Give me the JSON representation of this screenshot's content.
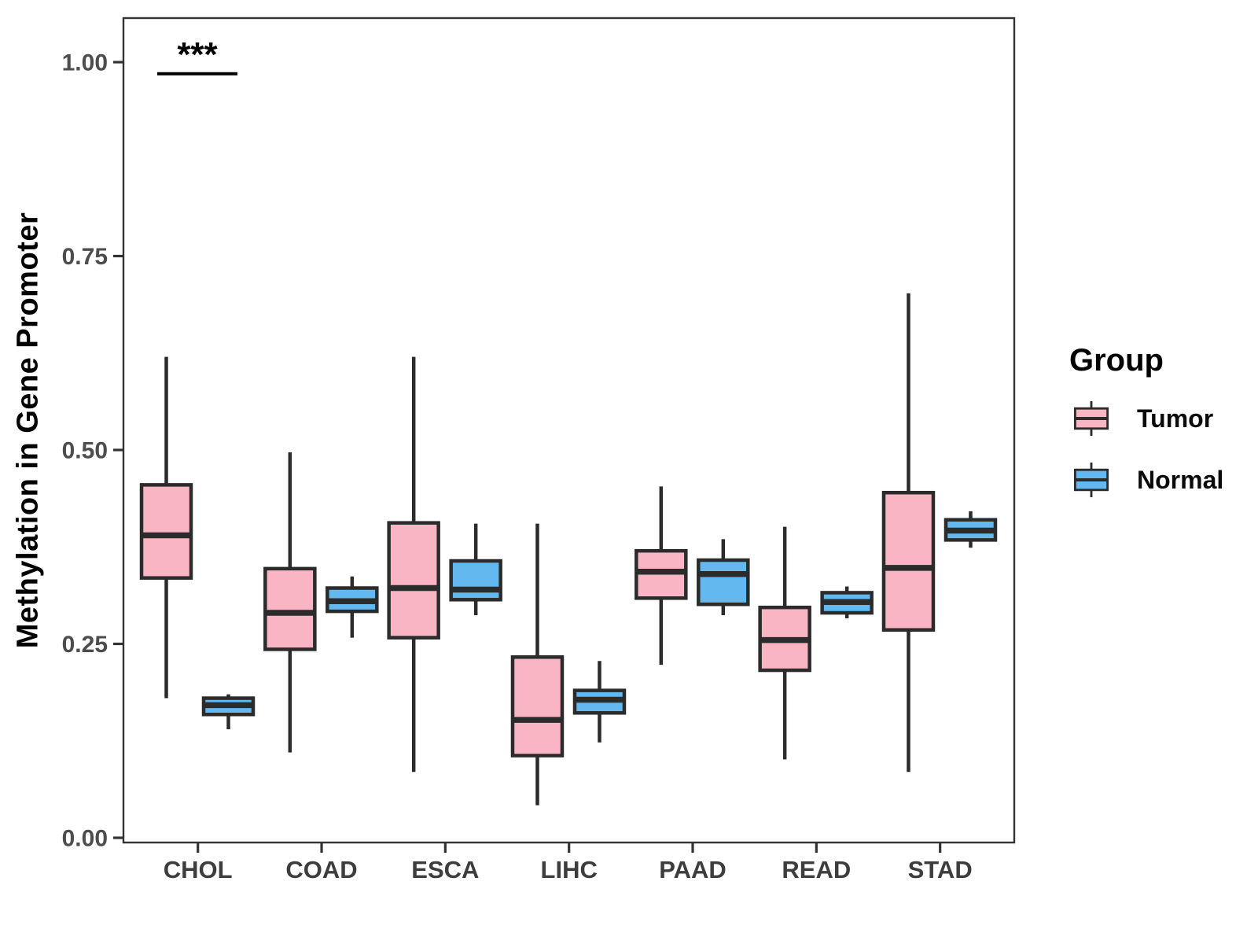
{
  "chart_data": {
    "type": "grouped_boxplot",
    "title": "",
    "ylabel": "Methylation in Gene Promoter",
    "xlabel": "",
    "categories": [
      "CHOL",
      "COAD",
      "ESCA",
      "LIHC",
      "PAAD",
      "READ",
      "STAD"
    ],
    "groups": [
      "Tumor",
      "Normal"
    ],
    "group_colors": {
      "Tumor": "#F9B5C4",
      "Normal": "#63B8F0"
    },
    "stroke_color": "#2B2B2B",
    "grid": false,
    "legend_position": "right",
    "ylim": [
      0,
      1.05
    ],
    "y_ticks": [
      {
        "value": 0.0,
        "label": "0.00"
      },
      {
        "value": 0.25,
        "label": "0.25"
      },
      {
        "value": 0.5,
        "label": "0.50"
      },
      {
        "value": 0.75,
        "label": "0.75"
      },
      {
        "value": 1.0,
        "label": "1.00"
      }
    ],
    "series": [
      {
        "group": "Tumor",
        "boxes": [
          {
            "category": "CHOL",
            "whisker_low": 0.18,
            "q1": 0.335,
            "median": 0.39,
            "q3": 0.455,
            "whisker_high": 0.62
          },
          {
            "category": "COAD",
            "whisker_low": 0.11,
            "q1": 0.243,
            "median": 0.29,
            "q3": 0.347,
            "whisker_high": 0.497
          },
          {
            "category": "ESCA",
            "whisker_low": 0.085,
            "q1": 0.258,
            "median": 0.322,
            "q3": 0.406,
            "whisker_high": 0.62
          },
          {
            "category": "LIHC",
            "whisker_low": 0.042,
            "q1": 0.106,
            "median": 0.152,
            "q3": 0.233,
            "whisker_high": 0.405
          },
          {
            "category": "PAAD",
            "whisker_low": 0.223,
            "q1": 0.309,
            "median": 0.343,
            "q3": 0.37,
            "whisker_high": 0.453
          },
          {
            "category": "READ",
            "whisker_low": 0.101,
            "q1": 0.216,
            "median": 0.255,
            "q3": 0.297,
            "whisker_high": 0.401
          },
          {
            "category": "STAD",
            "whisker_low": 0.085,
            "q1": 0.268,
            "median": 0.348,
            "q3": 0.445,
            "whisker_high": 0.702
          }
        ]
      },
      {
        "group": "Normal",
        "boxes": [
          {
            "category": "CHOL",
            "whisker_low": 0.14,
            "q1": 0.159,
            "median": 0.171,
            "q3": 0.18,
            "whisker_high": 0.185
          },
          {
            "category": "COAD",
            "whisker_low": 0.258,
            "q1": 0.292,
            "median": 0.305,
            "q3": 0.322,
            "whisker_high": 0.337
          },
          {
            "category": "ESCA",
            "whisker_low": 0.287,
            "q1": 0.307,
            "median": 0.32,
            "q3": 0.357,
            "whisker_high": 0.405
          },
          {
            "category": "LIHC",
            "whisker_low": 0.123,
            "q1": 0.161,
            "median": 0.178,
            "q3": 0.19,
            "whisker_high": 0.228
          },
          {
            "category": "PAAD",
            "whisker_low": 0.287,
            "q1": 0.301,
            "median": 0.34,
            "q3": 0.358,
            "whisker_high": 0.385
          },
          {
            "category": "READ",
            "whisker_low": 0.283,
            "q1": 0.29,
            "median": 0.304,
            "q3": 0.316,
            "whisker_high": 0.324
          },
          {
            "category": "STAD",
            "whisker_low": 0.374,
            "q1": 0.384,
            "median": 0.396,
            "q3": 0.41,
            "whisker_high": 0.421
          }
        ]
      }
    ],
    "significance": [
      {
        "category": "CHOL",
        "label": "***",
        "bar_value": 0.985,
        "label_value": 0.995
      }
    ],
    "legend": {
      "title": "Group",
      "entries": [
        {
          "label": "Tumor",
          "color": "#F9B5C4"
        },
        {
          "label": "Normal",
          "color": "#63B8F0"
        }
      ]
    }
  }
}
